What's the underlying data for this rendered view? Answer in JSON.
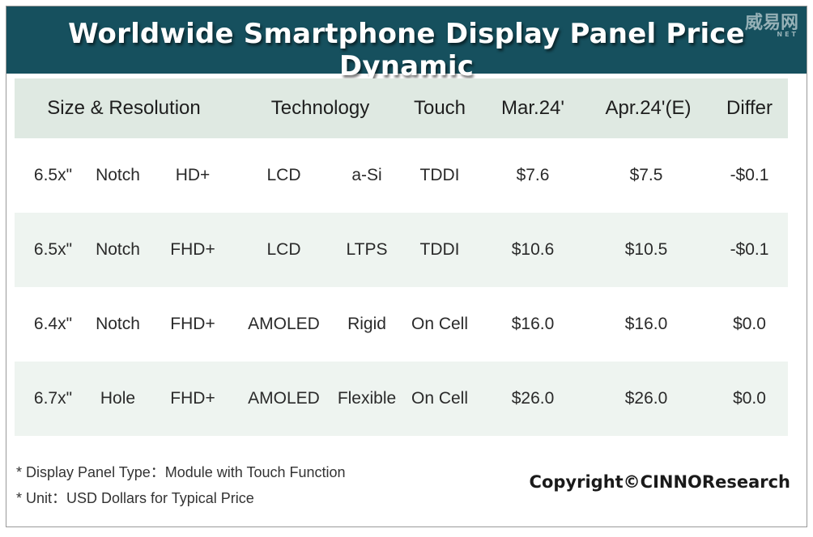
{
  "title": "Worldwide Smartphone Display Panel Price Dynamic",
  "watermark": {
    "logo": "威易网",
    "sub": "NET"
  },
  "headers": {
    "size_resolution": "Size & Resolution",
    "technology": "Technology",
    "touch": "Touch",
    "mar": "Mar.24'",
    "apr": "Apr.24'(E)",
    "differ": "Differ"
  },
  "rows": [
    {
      "size": "6.5x\"",
      "form": "Notch",
      "res": "HD+",
      "tech": "LCD",
      "backplane": "a-Si",
      "touch": "TDDI",
      "mar": "$7.6",
      "apr": "$7.5",
      "differ": "-$0.1"
    },
    {
      "size": "6.5x\"",
      "form": "Notch",
      "res": "FHD+",
      "tech": "LCD",
      "backplane": "LTPS",
      "touch": "TDDI",
      "mar": "$10.6",
      "apr": "$10.5",
      "differ": "-$0.1"
    },
    {
      "size": "6.4x\"",
      "form": "Notch",
      "res": "FHD+",
      "tech": "AMOLED",
      "backplane": "Rigid",
      "touch": "On Cell",
      "mar": "$16.0",
      "apr": "$16.0",
      "differ": "$0.0"
    },
    {
      "size": "6.7x\"",
      "form": "Hole",
      "res": "FHD+",
      "tech": "AMOLED",
      "backplane": "Flexible",
      "touch": "On Cell",
      "mar": "$26.0",
      "apr": "$26.0",
      "differ": "$0.0"
    }
  ],
  "notes": [
    "* Display Panel Type：Module with Touch Function",
    "* Unit：USD Dollars for Typical Price"
  ],
  "copyright": "Copyright©CINNOResearch",
  "colors": {
    "banner": "#16505e",
    "header_row": "#dfe9e2",
    "alt_row": "#eef4f0"
  }
}
